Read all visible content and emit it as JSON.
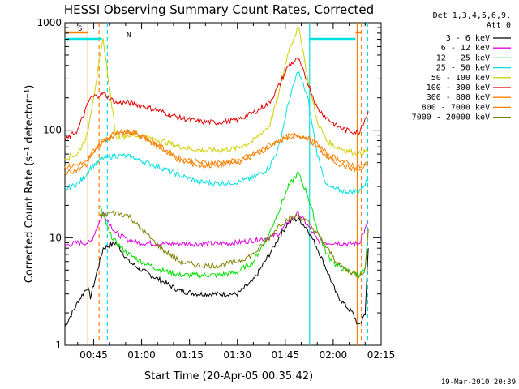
{
  "chart_data": {
    "type": "line",
    "title": "HESSI Observing Summary Count Rates, Corrected",
    "xlabel": "Start Time (20-Apr-05 00:35:42)",
    "ylabel": "Corrected Count Rate (s⁻¹ detector⁻¹)",
    "yscale": "log",
    "ylim": [
      1,
      1000
    ],
    "xlim_minutes": [
      36,
      135
    ],
    "x_ticks": [
      {
        "label": "00:45",
        "m": 45
      },
      {
        "label": "01:00",
        "m": 60
      },
      {
        "label": "01:15",
        "m": 75
      },
      {
        "label": "01:30",
        "m": 90
      },
      {
        "label": "01:45",
        "m": 105
      },
      {
        "label": "02:00",
        "m": 120
      },
      {
        "label": "02:15",
        "m": 135
      }
    ],
    "y_ticks": [
      {
        "label": "1",
        "v": 1
      },
      {
        "label": "10",
        "v": 10
      },
      {
        "label": "100",
        "v": 100
      },
      {
        "label": "1000",
        "v": 1000
      }
    ],
    "legend_header": [
      "Det 1,3,4,5,6,9,",
      "Att 0"
    ],
    "legend_position": "right",
    "footer_date": "19-Mar-2010 20:39",
    "series": [
      {
        "name": "3 - 6 keV",
        "color": "#000000",
        "x": [
          36,
          40,
          43,
          44,
          48,
          52,
          56,
          60,
          66,
          72,
          78,
          84,
          90,
          95,
          100,
          103,
          106,
          109,
          112,
          115,
          118,
          121,
          123,
          126,
          128,
          130,
          131
        ],
        "y": [
          1.5,
          2.5,
          3.5,
          2.8,
          8,
          9,
          6,
          5,
          4,
          3.2,
          3,
          3,
          3,
          4,
          7,
          10,
          14,
          15,
          12,
          8,
          5,
          3,
          2.5,
          2,
          1.5,
          2,
          8
        ]
      },
      {
        "name": "6 - 12 keV",
        "color": "#e000e0",
        "x": [
          36,
          40,
          43,
          44,
          48,
          52,
          56,
          60,
          66,
          72,
          78,
          84,
          90,
          95,
          100,
          103,
          106,
          109,
          112,
          115,
          118,
          121,
          124,
          128,
          131
        ],
        "y": [
          8.5,
          9,
          9,
          9,
          17,
          11,
          9.5,
          9,
          8.8,
          8.8,
          8.8,
          8.8,
          9,
          9.5,
          10,
          11,
          14,
          17,
          13,
          9.5,
          9,
          9,
          8.8,
          8.8,
          14
        ]
      },
      {
        "name": "12 - 25 keV",
        "color": "#00e000",
        "x": [
          47,
          48,
          50,
          52,
          56,
          60,
          66,
          72,
          78,
          84,
          90,
          95,
          100,
          103,
          106,
          109,
          112,
          115,
          118,
          121,
          124,
          128,
          130,
          131
        ],
        "y": [
          20,
          16,
          11,
          9,
          7,
          6,
          5,
          4.5,
          4.5,
          4.5,
          4.8,
          6,
          11,
          18,
          30,
          40,
          25,
          12,
          7,
          5.5,
          5,
          4.5,
          5,
          12
        ]
      },
      {
        "name": "25 - 50 keV",
        "color": "#00e0e0",
        "x": [
          36,
          40,
          42,
          44,
          48,
          52,
          56,
          60,
          66,
          72,
          78,
          84,
          90,
          95,
          100,
          103,
          106,
          109,
          112,
          115,
          118,
          121,
          124,
          128,
          131
        ],
        "y": [
          28,
          32,
          36,
          45,
          55,
          58,
          57,
          52,
          45,
          38,
          33,
          32,
          33,
          36,
          45,
          70,
          180,
          360,
          200,
          60,
          30,
          28,
          27,
          27,
          35
        ]
      },
      {
        "name": "50 - 100 keV",
        "color": "#d0d000",
        "x": [
          36,
          40,
          43,
          44,
          48,
          52,
          56,
          60,
          66,
          72,
          78,
          84,
          90,
          95,
          100,
          103,
          106,
          109,
          110,
          112,
          115,
          118,
          121,
          124,
          128,
          131
        ],
        "y": [
          55,
          60,
          90,
          140,
          700,
          85,
          90,
          88,
          80,
          70,
          65,
          65,
          68,
          80,
          110,
          220,
          550,
          900,
          700,
          300,
          120,
          80,
          70,
          65,
          60,
          65
        ]
      },
      {
        "name": "100 - 300 keV",
        "color": "#e00000",
        "x": [
          36,
          40,
          43,
          44,
          48,
          52,
          56,
          60,
          66,
          72,
          78,
          84,
          90,
          95,
          100,
          103,
          106,
          109,
          112,
          115,
          118,
          121,
          124,
          128,
          131
        ],
        "y": [
          80,
          100,
          170,
          200,
          220,
          180,
          180,
          170,
          150,
          130,
          120,
          118,
          125,
          145,
          180,
          260,
          400,
          460,
          280,
          160,
          130,
          110,
          100,
          95,
          150
        ]
      },
      {
        "name": "300 - 800 keV",
        "color": "#ff8000",
        "x": [
          36,
          40,
          43,
          44,
          48,
          52,
          56,
          60,
          66,
          72,
          78,
          84,
          90,
          95,
          100,
          103,
          106,
          109,
          112,
          115,
          118,
          121,
          124,
          128,
          131
        ],
        "y": [
          45,
          48,
          50,
          60,
          80,
          95,
          98,
          90,
          70,
          55,
          50,
          50,
          52,
          60,
          72,
          80,
          88,
          90,
          85,
          75,
          60,
          55,
          50,
          45,
          50
        ]
      },
      {
        "name": "800 - 7000 keV",
        "color": "#f08000",
        "x": [
          36,
          40,
          43,
          44,
          48,
          52,
          56,
          60,
          66,
          72,
          78,
          84,
          90,
          95,
          100,
          103,
          106,
          109,
          112,
          115,
          118,
          121,
          124,
          128,
          131
        ],
        "y": [
          40,
          43,
          48,
          58,
          78,
          92,
          95,
          88,
          68,
          52,
          47,
          47,
          50,
          58,
          70,
          78,
          86,
          88,
          82,
          70,
          56,
          50,
          46,
          42,
          48
        ]
      },
      {
        "name": "7000 - 20000 keV",
        "color": "#808000",
        "x": [
          47,
          48,
          50,
          52,
          56,
          60,
          66,
          72,
          78,
          84,
          90,
          95,
          100,
          103,
          106,
          109,
          112,
          115,
          118,
          121,
          124,
          128,
          130,
          131
        ],
        "y": [
          16,
          16,
          17,
          17,
          16,
          12,
          8,
          6,
          5.5,
          5.5,
          6,
          7,
          10,
          13,
          15,
          16,
          14,
          11,
          8,
          6,
          5,
          4.5,
          5,
          12
        ]
      }
    ],
    "flags": [
      {
        "label": "S",
        "color": "#ff8000",
        "segments": [
          [
            36,
            43.2
          ],
          [
            127,
            128.8
          ]
        ]
      },
      {
        "label": "N",
        "color": "#00e0e0",
        "segments": [
          [
            36,
            47.6
          ],
          [
            112.6,
            127
          ]
        ]
      }
    ],
    "vlines": [
      {
        "m": 43.2,
        "color": "#ff8000",
        "dash": false
      },
      {
        "m": 46.7,
        "color": "#ff8000",
        "dash": true
      },
      {
        "m": 49.3,
        "color": "#00e0e0",
        "dash": true
      },
      {
        "m": 112.6,
        "color": "#00e0e0",
        "dash": false
      },
      {
        "m": 127.5,
        "color": "#ff8000",
        "dash": false
      },
      {
        "m": 128.8,
        "color": "#ff8000",
        "dash": true
      },
      {
        "m": 130.8,
        "color": "#00e0e0",
        "dash": true
      }
    ]
  }
}
